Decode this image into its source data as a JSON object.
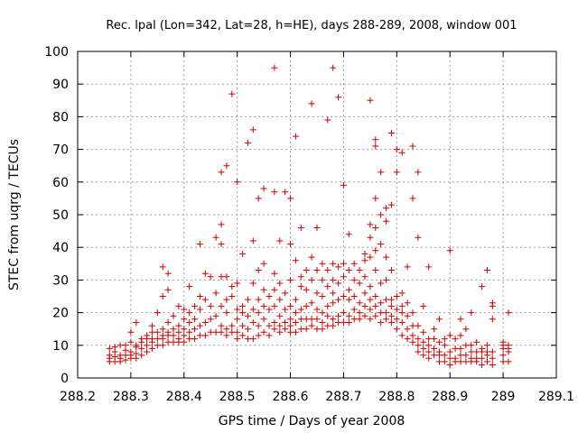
{
  "chart_data": {
    "type": "scatter",
    "title": "Rec. lpal (Lon=342, Lat=28, h=HE), days 288-289, 2008, window 001",
    "xlabel": "GPS time / Days of year 2008",
    "ylabel": "STEC from uqrg / TECUs",
    "xlim": [
      288.2,
      289.1
    ],
    "ylim": [
      0,
      100
    ],
    "x_ticks": [
      "288.2",
      "288.3",
      "288.4",
      "288.5",
      "288.6",
      "288.7",
      "288.8",
      "288.9",
      "289",
      "289.1"
    ],
    "y_ticks": [
      "0",
      "10",
      "20",
      "30",
      "40",
      "50",
      "60",
      "70",
      "80",
      "90",
      "100"
    ],
    "grid": true,
    "marker": "plus",
    "color": "#cc0000",
    "points": [
      [
        288.26,
        5
      ],
      [
        288.26,
        6
      ],
      [
        288.26,
        7
      ],
      [
        288.26,
        9
      ],
      [
        288.27,
        5
      ],
      [
        288.27,
        6.5
      ],
      [
        288.27,
        8
      ],
      [
        288.27,
        9.5
      ],
      [
        288.28,
        5
      ],
      [
        288.28,
        6
      ],
      [
        288.28,
        7
      ],
      [
        288.28,
        10
      ],
      [
        288.29,
        5.5
      ],
      [
        288.29,
        7
      ],
      [
        288.29,
        8.5
      ],
      [
        288.29,
        10
      ],
      [
        288.3,
        6
      ],
      [
        288.3,
        7
      ],
      [
        288.3,
        8
      ],
      [
        288.3,
        11
      ],
      [
        288.3,
        14
      ],
      [
        288.31,
        6
      ],
      [
        288.31,
        7.5
      ],
      [
        288.31,
        9.5
      ],
      [
        288.31,
        10
      ],
      [
        288.31,
        17
      ],
      [
        288.32,
        7
      ],
      [
        288.32,
        9
      ],
      [
        288.32,
        11
      ],
      [
        288.32,
        12
      ],
      [
        288.33,
        8
      ],
      [
        288.33,
        10
      ],
      [
        288.33,
        12
      ],
      [
        288.33,
        13
      ],
      [
        288.34,
        9
      ],
      [
        288.34,
        11
      ],
      [
        288.34,
        12
      ],
      [
        288.34,
        14
      ],
      [
        288.34,
        16
      ],
      [
        288.35,
        10
      ],
      [
        288.35,
        12
      ],
      [
        288.35,
        14
      ],
      [
        288.35,
        20
      ],
      [
        288.36,
        10
      ],
      [
        288.36,
        12
      ],
      [
        288.36,
        13
      ],
      [
        288.36,
        15
      ],
      [
        288.36,
        25
      ],
      [
        288.36,
        34
      ],
      [
        288.37,
        11
      ],
      [
        288.37,
        13
      ],
      [
        288.37,
        14
      ],
      [
        288.37,
        17
      ],
      [
        288.37,
        27
      ],
      [
        288.37,
        32
      ],
      [
        288.38,
        11
      ],
      [
        288.38,
        13
      ],
      [
        288.38,
        15
      ],
      [
        288.38,
        19
      ],
      [
        288.39,
        11
      ],
      [
        288.39,
        12
      ],
      [
        288.39,
        14
      ],
      [
        288.39,
        16
      ],
      [
        288.39,
        22
      ],
      [
        288.4,
        11
      ],
      [
        288.4,
        13
      ],
      [
        288.4,
        15
      ],
      [
        288.4,
        18
      ],
      [
        288.4,
        21
      ],
      [
        288.41,
        12
      ],
      [
        288.41,
        14
      ],
      [
        288.41,
        17
      ],
      [
        288.41,
        20
      ],
      [
        288.41,
        28
      ],
      [
        288.42,
        12
      ],
      [
        288.42,
        15
      ],
      [
        288.42,
        18
      ],
      [
        288.42,
        22
      ],
      [
        288.43,
        13
      ],
      [
        288.43,
        16
      ],
      [
        288.43,
        21
      ],
      [
        288.43,
        25
      ],
      [
        288.43,
        41
      ],
      [
        288.44,
        13
      ],
      [
        288.44,
        17
      ],
      [
        288.44,
        24
      ],
      [
        288.44,
        32
      ],
      [
        288.45,
        14
      ],
      [
        288.45,
        18
      ],
      [
        288.45,
        22
      ],
      [
        288.45,
        31
      ],
      [
        288.46,
        14
      ],
      [
        288.46,
        19
      ],
      [
        288.46,
        26
      ],
      [
        288.46,
        43
      ],
      [
        288.47,
        14
      ],
      [
        288.47,
        16
      ],
      [
        288.47,
        22
      ],
      [
        288.47,
        31
      ],
      [
        288.47,
        41
      ],
      [
        288.47,
        47
      ],
      [
        288.47,
        63
      ],
      [
        288.48,
        13
      ],
      [
        288.48,
        15
      ],
      [
        288.48,
        20
      ],
      [
        288.48,
        24
      ],
      [
        288.48,
        31
      ],
      [
        288.48,
        65
      ],
      [
        288.49,
        14
      ],
      [
        288.49,
        16
      ],
      [
        288.49,
        25
      ],
      [
        288.49,
        28
      ],
      [
        288.49,
        87
      ],
      [
        288.5,
        12
      ],
      [
        288.5,
        14
      ],
      [
        288.5,
        18
      ],
      [
        288.5,
        21
      ],
      [
        288.5,
        29
      ],
      [
        288.5,
        60
      ],
      [
        288.51,
        13
      ],
      [
        288.51,
        16
      ],
      [
        288.51,
        20
      ],
      [
        288.51,
        22
      ],
      [
        288.51,
        38
      ],
      [
        288.52,
        12
      ],
      [
        288.52,
        15
      ],
      [
        288.52,
        19
      ],
      [
        288.52,
        24
      ],
      [
        288.52,
        72
      ],
      [
        288.53,
        12
      ],
      [
        288.53,
        17
      ],
      [
        288.53,
        21
      ],
      [
        288.53,
        29
      ],
      [
        288.53,
        42
      ],
      [
        288.53,
        76
      ],
      [
        288.54,
        13
      ],
      [
        288.54,
        16
      ],
      [
        288.54,
        20
      ],
      [
        288.54,
        24
      ],
      [
        288.54,
        33
      ],
      [
        288.54,
        55
      ],
      [
        288.55,
        14
      ],
      [
        288.55,
        18
      ],
      [
        288.55,
        22
      ],
      [
        288.55,
        27
      ],
      [
        288.55,
        35
      ],
      [
        288.55,
        58
      ],
      [
        288.56,
        13
      ],
      [
        288.56,
        16
      ],
      [
        288.56,
        21
      ],
      [
        288.56,
        25
      ],
      [
        288.57,
        15
      ],
      [
        288.57,
        17
      ],
      [
        288.57,
        22
      ],
      [
        288.57,
        27
      ],
      [
        288.57,
        32
      ],
      [
        288.57,
        57
      ],
      [
        288.57,
        95
      ],
      [
        288.58,
        14
      ],
      [
        288.58,
        16
      ],
      [
        288.58,
        19
      ],
      [
        288.58,
        24
      ],
      [
        288.58,
        29
      ],
      [
        288.58,
        42
      ],
      [
        288.59,
        15
      ],
      [
        288.59,
        17
      ],
      [
        288.59,
        21
      ],
      [
        288.59,
        26
      ],
      [
        288.59,
        57
      ],
      [
        288.6,
        14
      ],
      [
        288.6,
        16
      ],
      [
        288.6,
        18
      ],
      [
        288.6,
        22
      ],
      [
        288.6,
        30
      ],
      [
        288.6,
        41
      ],
      [
        288.6,
        55
      ],
      [
        288.61,
        14
      ],
      [
        288.61,
        17
      ],
      [
        288.61,
        20
      ],
      [
        288.61,
        24
      ],
      [
        288.61,
        36
      ],
      [
        288.61,
        74
      ],
      [
        288.62,
        15
      ],
      [
        288.62,
        18
      ],
      [
        288.62,
        21
      ],
      [
        288.62,
        28
      ],
      [
        288.62,
        31
      ],
      [
        288.62,
        46
      ],
      [
        288.63,
        15
      ],
      [
        288.63,
        18
      ],
      [
        288.63,
        22
      ],
      [
        288.63,
        27
      ],
      [
        288.63,
        33
      ],
      [
        288.64,
        16
      ],
      [
        288.64,
        18
      ],
      [
        288.64,
        23
      ],
      [
        288.64,
        30
      ],
      [
        288.64,
        37
      ],
      [
        288.64,
        84
      ],
      [
        288.65,
        15
      ],
      [
        288.65,
        18
      ],
      [
        288.65,
        21
      ],
      [
        288.65,
        26
      ],
      [
        288.65,
        33
      ],
      [
        288.65,
        46
      ],
      [
        288.66,
        15
      ],
      [
        288.66,
        17
      ],
      [
        288.66,
        20
      ],
      [
        288.66,
        25
      ],
      [
        288.66,
        30
      ],
      [
        288.66,
        35
      ],
      [
        288.67,
        16
      ],
      [
        288.67,
        19
      ],
      [
        288.67,
        22
      ],
      [
        288.67,
        28
      ],
      [
        288.67,
        33
      ],
      [
        288.67,
        79
      ],
      [
        288.68,
        16
      ],
      [
        288.68,
        18
      ],
      [
        288.68,
        23
      ],
      [
        288.68,
        26
      ],
      [
        288.68,
        30
      ],
      [
        288.68,
        35
      ],
      [
        288.68,
        95
      ],
      [
        288.69,
        17
      ],
      [
        288.69,
        19
      ],
      [
        288.69,
        24
      ],
      [
        288.69,
        29
      ],
      [
        288.69,
        34
      ],
      [
        288.69,
        86
      ],
      [
        288.7,
        17
      ],
      [
        288.7,
        20
      ],
      [
        288.7,
        25
      ],
      [
        288.7,
        31
      ],
      [
        288.7,
        35
      ],
      [
        288.7,
        59
      ],
      [
        288.71,
        17
      ],
      [
        288.71,
        19
      ],
      [
        288.71,
        24
      ],
      [
        288.71,
        27
      ],
      [
        288.71,
        33
      ],
      [
        288.71,
        44
      ],
      [
        288.72,
        18
      ],
      [
        288.72,
        21
      ],
      [
        288.72,
        25
      ],
      [
        288.72,
        30
      ],
      [
        288.72,
        35
      ],
      [
        288.73,
        18
      ],
      [
        288.73,
        20
      ],
      [
        288.73,
        23
      ],
      [
        288.73,
        29
      ],
      [
        288.73,
        33
      ],
      [
        288.74,
        19
      ],
      [
        288.74,
        22
      ],
      [
        288.74,
        26
      ],
      [
        288.74,
        31
      ],
      [
        288.74,
        36
      ],
      [
        288.74,
        38
      ],
      [
        288.75,
        18
      ],
      [
        288.75,
        21
      ],
      [
        288.75,
        24
      ],
      [
        288.75,
        28
      ],
      [
        288.75,
        37
      ],
      [
        288.75,
        43
      ],
      [
        288.75,
        47
      ],
      [
        288.75,
        85
      ],
      [
        288.76,
        19
      ],
      [
        288.76,
        22
      ],
      [
        288.76,
        25
      ],
      [
        288.76,
        33
      ],
      [
        288.76,
        39
      ],
      [
        288.76,
        46
      ],
      [
        288.76,
        55
      ],
      [
        288.76,
        71
      ],
      [
        288.76,
        73
      ],
      [
        288.77,
        17
      ],
      [
        288.77,
        20
      ],
      [
        288.77,
        23
      ],
      [
        288.77,
        29
      ],
      [
        288.77,
        41
      ],
      [
        288.77,
        50
      ],
      [
        288.77,
        63
      ],
      [
        288.78,
        18
      ],
      [
        288.78,
        20
      ],
      [
        288.78,
        24
      ],
      [
        288.78,
        30
      ],
      [
        288.78,
        37
      ],
      [
        288.78,
        48
      ],
      [
        288.78,
        52
      ],
      [
        288.79,
        17
      ],
      [
        288.79,
        19
      ],
      [
        288.79,
        22
      ],
      [
        288.79,
        24
      ],
      [
        288.79,
        33
      ],
      [
        288.79,
        53
      ],
      [
        288.79,
        75
      ],
      [
        288.8,
        15
      ],
      [
        288.8,
        18
      ],
      [
        288.8,
        21
      ],
      [
        288.8,
        25
      ],
      [
        288.8,
        63
      ],
      [
        288.8,
        70
      ],
      [
        288.81,
        13
      ],
      [
        288.81,
        17
      ],
      [
        288.81,
        20
      ],
      [
        288.81,
        22
      ],
      [
        288.81,
        26
      ],
      [
        288.81,
        69
      ],
      [
        288.82,
        12
      ],
      [
        288.82,
        15
      ],
      [
        288.82,
        19
      ],
      [
        288.82,
        23
      ],
      [
        288.82,
        34
      ],
      [
        288.83,
        11
      ],
      [
        288.83,
        13
      ],
      [
        288.83,
        16
      ],
      [
        288.83,
        20
      ],
      [
        288.83,
        55
      ],
      [
        288.83,
        71
      ],
      [
        288.84,
        8
      ],
      [
        288.84,
        10
      ],
      [
        288.84,
        12
      ],
      [
        288.84,
        16
      ],
      [
        288.84,
        43
      ],
      [
        288.84,
        63
      ],
      [
        288.85,
        7
      ],
      [
        288.85,
        9
      ],
      [
        288.85,
        11
      ],
      [
        288.85,
        14
      ],
      [
        288.85,
        22
      ],
      [
        288.86,
        6
      ],
      [
        288.86,
        8
      ],
      [
        288.86,
        10
      ],
      [
        288.86,
        12
      ],
      [
        288.86,
        34
      ],
      [
        288.87,
        7
      ],
      [
        288.87,
        9
      ],
      [
        288.87,
        12
      ],
      [
        288.87,
        15
      ],
      [
        288.88,
        5
      ],
      [
        288.88,
        7
      ],
      [
        288.88,
        8
      ],
      [
        288.88,
        11
      ],
      [
        288.88,
        18
      ],
      [
        288.89,
        5
      ],
      [
        288.89,
        7
      ],
      [
        288.89,
        10
      ],
      [
        288.89,
        12
      ],
      [
        288.9,
        4
      ],
      [
        288.9,
        6
      ],
      [
        288.9,
        8
      ],
      [
        288.9,
        13
      ],
      [
        288.9,
        39
      ],
      [
        288.91,
        5
      ],
      [
        288.91,
        6
      ],
      [
        288.91,
        9
      ],
      [
        288.91,
        12
      ],
      [
        288.92,
        5
      ],
      [
        288.92,
        7
      ],
      [
        288.92,
        9
      ],
      [
        288.92,
        13
      ],
      [
        288.92,
        18
      ],
      [
        288.93,
        5
      ],
      [
        288.93,
        7
      ],
      [
        288.93,
        10
      ],
      [
        288.93,
        15
      ],
      [
        288.94,
        5
      ],
      [
        288.94,
        6
      ],
      [
        288.94,
        8
      ],
      [
        288.94,
        10
      ],
      [
        288.94,
        20
      ],
      [
        288.95,
        5
      ],
      [
        288.95,
        6
      ],
      [
        288.95,
        8
      ],
      [
        288.95,
        11
      ],
      [
        288.96,
        4
      ],
      [
        288.96,
        6
      ],
      [
        288.96,
        8
      ],
      [
        288.96,
        9
      ],
      [
        288.96,
        28
      ],
      [
        288.97,
        5
      ],
      [
        288.97,
        7
      ],
      [
        288.97,
        8
      ],
      [
        288.97,
        10
      ],
      [
        288.97,
        33
      ],
      [
        288.98,
        4
      ],
      [
        288.98,
        6
      ],
      [
        288.98,
        8
      ],
      [
        288.98,
        18
      ],
      [
        288.98,
        22
      ],
      [
        288.98,
        23
      ],
      [
        289.0,
        5
      ],
      [
        289.0,
        7
      ],
      [
        289.0,
        9
      ],
      [
        289.0,
        10
      ],
      [
        289.0,
        11
      ],
      [
        289.01,
        5
      ],
      [
        289.01,
        8
      ],
      [
        289.01,
        9
      ],
      [
        289.01,
        10
      ],
      [
        289.01,
        20
      ]
    ]
  }
}
